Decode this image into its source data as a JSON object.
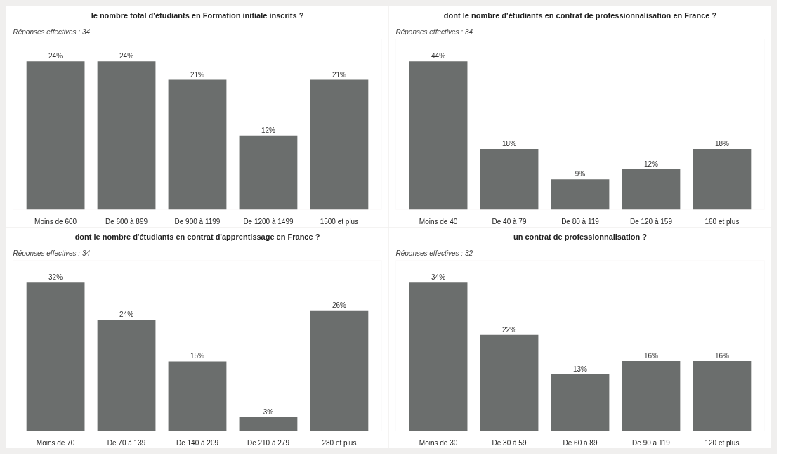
{
  "chart_data": [
    {
      "type": "bar",
      "title": "le nombre total d'étudiants en Formation initiale inscrits ?",
      "subtitle": "Réponses effectives : 34",
      "categories": [
        "Moins de 600",
        "De 600 à 899",
        "De 900 à 1199",
        "De 1200 à 1499",
        "1500 et plus"
      ],
      "values": [
        24,
        24,
        21,
        12,
        21
      ],
      "value_labels": [
        "24%",
        "24%",
        "21%",
        "12%",
        "21%"
      ],
      "color": "#6b6e6d"
    },
    {
      "type": "bar",
      "title": "dont le nombre d'étudiants en contrat de professionnalisation en France ?",
      "subtitle": "Réponses effectives : 34",
      "categories": [
        "Moins de 40",
        "De 40 à 79",
        "De 80 à 119",
        "De 120 à 159",
        "160 et plus"
      ],
      "values": [
        44,
        18,
        9,
        12,
        18
      ],
      "value_labels": [
        "44%",
        "18%",
        "9%",
        "12%",
        "18%"
      ],
      "color": "#6b6e6d"
    },
    {
      "type": "bar",
      "title": "dont le nombre d'étudiants en contrat d'apprentissage en France ?",
      "subtitle": "Réponses effectives : 34",
      "categories": [
        "Moins de 70",
        "De 70 à 139",
        "De 140 à 209",
        "De 210 à 279",
        "280 et plus"
      ],
      "values": [
        32,
        24,
        15,
        3,
        26
      ],
      "value_labels": [
        "32%",
        "24%",
        "15%",
        "3%",
        "26%"
      ],
      "color": "#6b6e6d"
    },
    {
      "type": "bar",
      "title": "un contrat de professionnalisation ?",
      "subtitle": "Réponses effectives : 32",
      "categories": [
        "Moins de 30",
        "De 30 à 59",
        "De 60 à 89",
        "De 90 à 119",
        "120 et plus"
      ],
      "values": [
        34,
        22,
        13,
        16,
        16
      ],
      "value_labels": [
        "34%",
        "22%",
        "13%",
        "16%",
        "16%"
      ],
      "color": "#6b6e6d"
    }
  ]
}
